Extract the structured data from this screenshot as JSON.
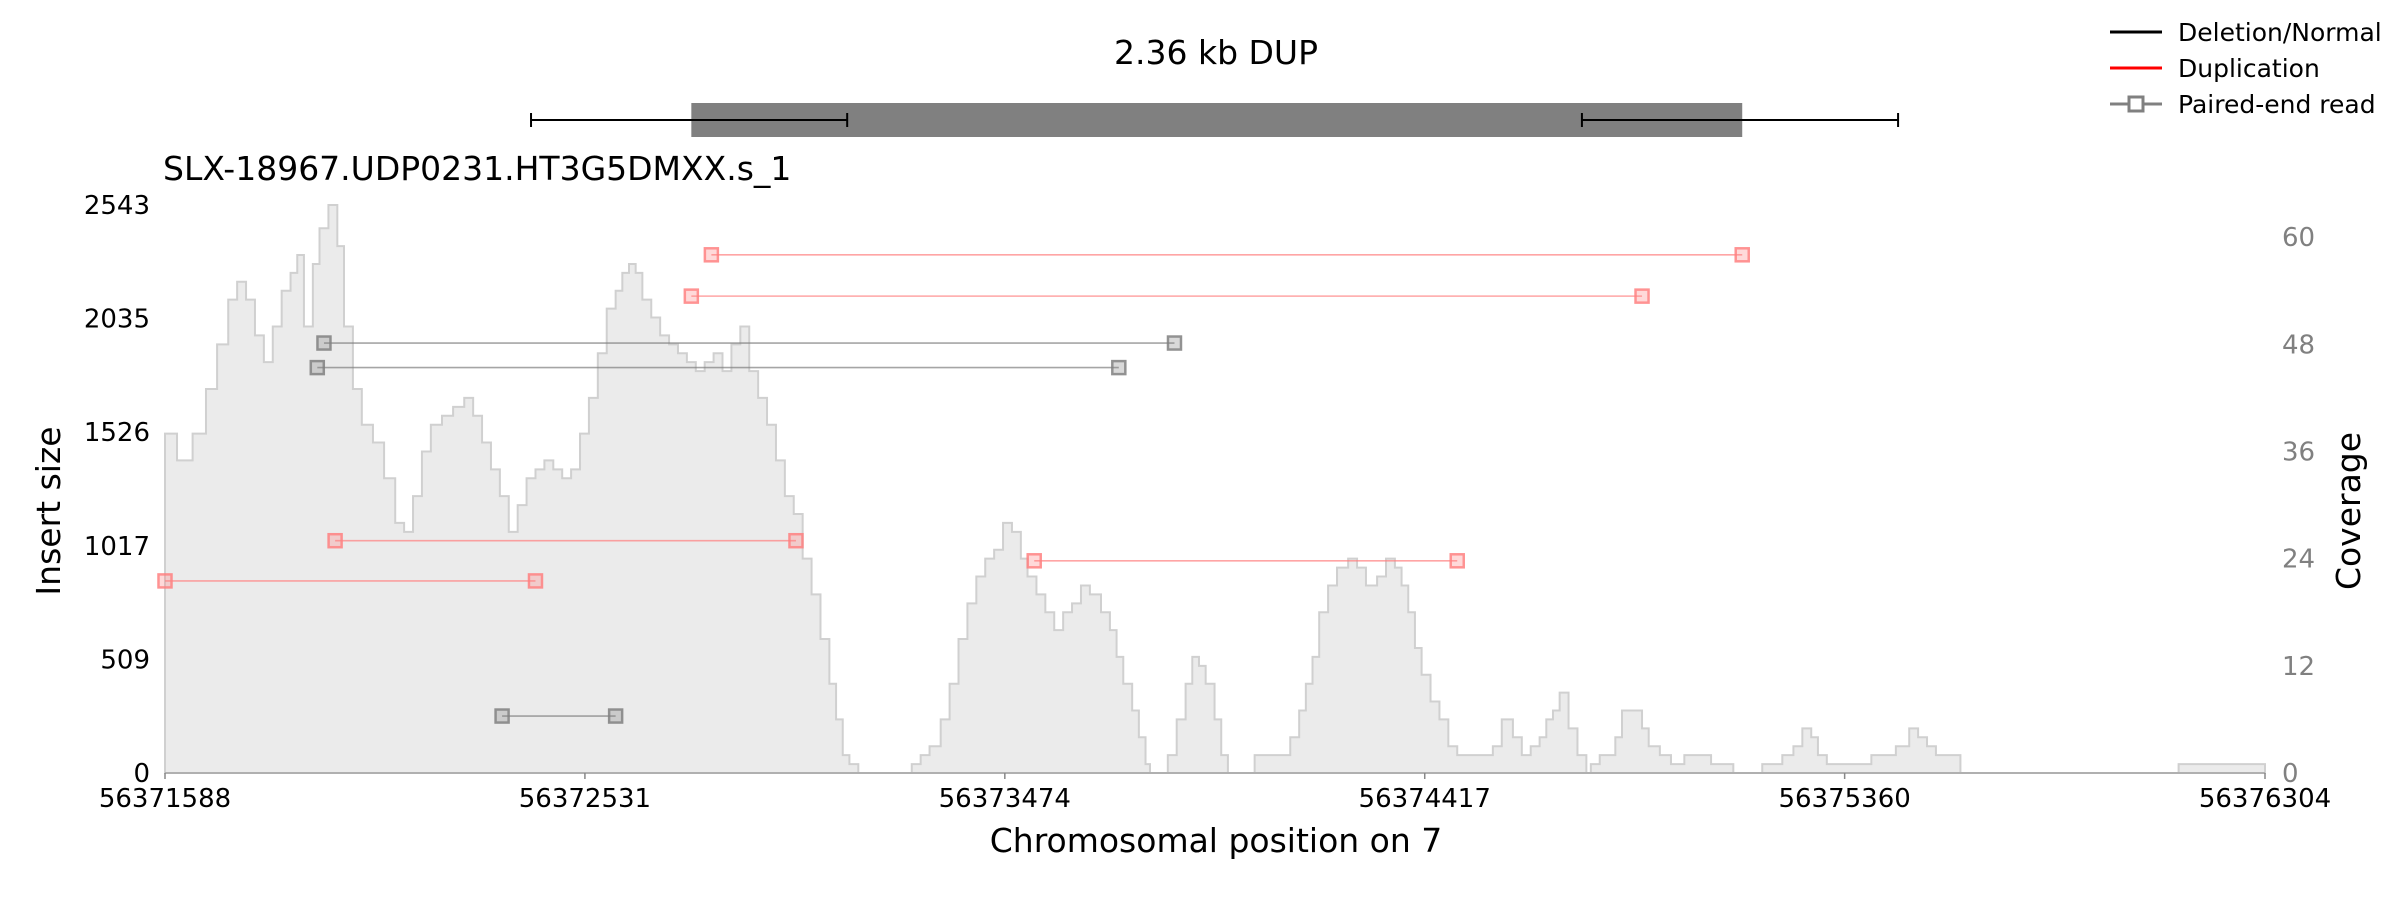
{
  "chart_data": {
    "type": "line",
    "title": "2.36 kb DUP",
    "subtitle": "SLX-18967.UDP0231.HT3G5DMXX.s_1",
    "xlabel": "Chromosomal position on 7",
    "ylabel_left": "Insert size",
    "ylabel_right": "Coverage",
    "xlim": [
      56371588,
      56376304
    ],
    "ylim_left": [
      0,
      2543
    ],
    "ylim_right": [
      0,
      63.6
    ],
    "x_ticks": [
      "56371588",
      "56372531",
      "56373474",
      "56374417",
      "56375360",
      "56376304"
    ],
    "y_ticks_left": [
      "0",
      "509",
      "1017",
      "1526",
      "2035",
      "2543"
    ],
    "y_ticks_right": [
      "0",
      "12",
      "24",
      "36",
      "48",
      "60"
    ],
    "legend": [
      {
        "label": "Deletion/Normal",
        "color": "#000000",
        "marker": "none"
      },
      {
        "label": "Duplication",
        "color": "#ff0000",
        "marker": "none"
      },
      {
        "label": "Paired-end read",
        "color": "#808080",
        "marker": "square"
      }
    ],
    "colors": {
      "normal": "#808080",
      "duplication": "#ff8080",
      "coverage_fill": "#ebebeb",
      "coverage_line": "#d0d0d0",
      "sv_bar": "#808080"
    },
    "sv": {
      "start": 56372770,
      "end": 56375130,
      "ci_start": [
        56372410,
        56373120
      ],
      "ci_end": [
        56374770,
        56375480
      ]
    },
    "pairs": [
      {
        "type": "duplication",
        "x1": 56372815,
        "x2": 56375130,
        "y": 2320
      },
      {
        "type": "duplication",
        "x1": 56372770,
        "x2": 56374905,
        "y": 2135
      },
      {
        "type": "normal",
        "x1": 56371945,
        "x2": 56373855,
        "y": 1925
      },
      {
        "type": "normal",
        "x1": 56371930,
        "x2": 56373730,
        "y": 1815
      },
      {
        "type": "duplication",
        "x1": 56371970,
        "x2": 56373005,
        "y": 1040
      },
      {
        "type": "duplication",
        "x1": 56373540,
        "x2": 56374490,
        "y": 950
      },
      {
        "type": "duplication",
        "x1": 56371588,
        "x2": 56372420,
        "y": 860
      },
      {
        "type": "normal",
        "x1": 56372345,
        "x2": 56372600,
        "y": 255
      }
    ],
    "coverage": [
      [
        56371588,
        38
      ],
      [
        56371615,
        35
      ],
      [
        56371650,
        38
      ],
      [
        56371680,
        43
      ],
      [
        56371705,
        48
      ],
      [
        56371730,
        53
      ],
      [
        56371750,
        55
      ],
      [
        56371770,
        53
      ],
      [
        56371790,
        49
      ],
      [
        56371810,
        46
      ],
      [
        56371830,
        50
      ],
      [
        56371850,
        54
      ],
      [
        56371870,
        56
      ],
      [
        56371885,
        58
      ],
      [
        56371900,
        50
      ],
      [
        56371920,
        57
      ],
      [
        56371935,
        61
      ],
      [
        56371955,
        63.6
      ],
      [
        56371975,
        59
      ],
      [
        56371990,
        50
      ],
      [
        56372010,
        43
      ],
      [
        56372030,
        39
      ],
      [
        56372055,
        37
      ],
      [
        56372080,
        33
      ],
      [
        56372105,
        28
      ],
      [
        56372125,
        27
      ],
      [
        56372145,
        31
      ],
      [
        56372165,
        36
      ],
      [
        56372185,
        39
      ],
      [
        56372210,
        40
      ],
      [
        56372235,
        41
      ],
      [
        56372260,
        42
      ],
      [
        56372280,
        40
      ],
      [
        56372300,
        37
      ],
      [
        56372320,
        34
      ],
      [
        56372340,
        31
      ],
      [
        56372360,
        27
      ],
      [
        56372380,
        30
      ],
      [
        56372400,
        33
      ],
      [
        56372420,
        34
      ],
      [
        56372440,
        35
      ],
      [
        56372460,
        34
      ],
      [
        56372480,
        33
      ],
      [
        56372500,
        34
      ],
      [
        56372520,
        38
      ],
      [
        56372540,
        42
      ],
      [
        56372560,
        47
      ],
      [
        56372580,
        52
      ],
      [
        56372600,
        54
      ],
      [
        56372615,
        56
      ],
      [
        56372630,
        57
      ],
      [
        56372645,
        56
      ],
      [
        56372660,
        53
      ],
      [
        56372680,
        51
      ],
      [
        56372700,
        49
      ],
      [
        56372720,
        48
      ],
      [
        56372740,
        47
      ],
      [
        56372760,
        46
      ],
      [
        56372780,
        45
      ],
      [
        56372800,
        46
      ],
      [
        56372820,
        47
      ],
      [
        56372840,
        45
      ],
      [
        56372860,
        48
      ],
      [
        56372880,
        50
      ],
      [
        56372900,
        45
      ],
      [
        56372920,
        42
      ],
      [
        56372940,
        39
      ],
      [
        56372960,
        35
      ],
      [
        56372980,
        31
      ],
      [
        56373000,
        29
      ],
      [
        56373020,
        24
      ],
      [
        56373040,
        20
      ],
      [
        56373060,
        15
      ],
      [
        56373080,
        10
      ],
      [
        56373095,
        6
      ],
      [
        56373110,
        2
      ],
      [
        56373125,
        1
      ],
      [
        56373145,
        0
      ],
      [
        56373265,
        1
      ],
      [
        56373285,
        2
      ],
      [
        56373305,
        3
      ],
      [
        56373330,
        6
      ],
      [
        56373350,
        10
      ],
      [
        56373370,
        15
      ],
      [
        56373390,
        19
      ],
      [
        56373410,
        22
      ],
      [
        56373430,
        24
      ],
      [
        56373450,
        25
      ],
      [
        56373470,
        28
      ],
      [
        56373490,
        27
      ],
      [
        56373510,
        24
      ],
      [
        56373525,
        22
      ],
      [
        56373545,
        20
      ],
      [
        56373565,
        18
      ],
      [
        56373585,
        16
      ],
      [
        56373605,
        18
      ],
      [
        56373625,
        19
      ],
      [
        56373645,
        21
      ],
      [
        56373665,
        20
      ],
      [
        56373690,
        18
      ],
      [
        56373710,
        16
      ],
      [
        56373725,
        13
      ],
      [
        56373740,
        10
      ],
      [
        56373760,
        7
      ],
      [
        56373775,
        4
      ],
      [
        56373790,
        1
      ],
      [
        56373800,
        0
      ],
      [
        56373840,
        2
      ],
      [
        56373860,
        6
      ],
      [
        56373880,
        10
      ],
      [
        56373895,
        13
      ],
      [
        56373910,
        12
      ],
      [
        56373925,
        10
      ],
      [
        56373945,
        6
      ],
      [
        56373960,
        2
      ],
      [
        56373975,
        0
      ],
      [
        56374035,
        2
      ],
      [
        56374085,
        2
      ],
      [
        56374115,
        4
      ],
      [
        56374135,
        7
      ],
      [
        56374150,
        10
      ],
      [
        56374165,
        13
      ],
      [
        56374180,
        18
      ],
      [
        56374200,
        21
      ],
      [
        56374220,
        23
      ],
      [
        56374245,
        24
      ],
      [
        56374265,
        23
      ],
      [
        56374285,
        21
      ],
      [
        56374310,
        22
      ],
      [
        56374330,
        24
      ],
      [
        56374350,
        23
      ],
      [
        56374365,
        21
      ],
      [
        56374380,
        18
      ],
      [
        56374395,
        14
      ],
      [
        56374410,
        11
      ],
      [
        56374430,
        8
      ],
      [
        56374450,
        6
      ],
      [
        56374470,
        3
      ],
      [
        56374490,
        2
      ],
      [
        56374570,
        3
      ],
      [
        56374590,
        6
      ],
      [
        56374615,
        4
      ],
      [
        56374635,
        2
      ],
      [
        56374655,
        3
      ],
      [
        56374675,
        4
      ],
      [
        56374690,
        6
      ],
      [
        56374705,
        7
      ],
      [
        56374720,
        9
      ],
      [
        56374740,
        5
      ],
      [
        56374760,
        2
      ],
      [
        56374780,
        0
      ],
      [
        56374790,
        1
      ],
      [
        56374810,
        2
      ],
      [
        56374845,
        4
      ],
      [
        56374860,
        7
      ],
      [
        56374890,
        7
      ],
      [
        56374905,
        5
      ],
      [
        56374920,
        3
      ],
      [
        56374945,
        2
      ],
      [
        56374970,
        1
      ],
      [
        56375000,
        2
      ],
      [
        56375060,
        1
      ],
      [
        56375110,
        0
      ],
      [
        56375175,
        1
      ],
      [
        56375220,
        2
      ],
      [
        56375245,
        3
      ],
      [
        56375265,
        5
      ],
      [
        56375285,
        4
      ],
      [
        56375300,
        2
      ],
      [
        56375320,
        1
      ],
      [
        56375370,
        1
      ],
      [
        56375420,
        2
      ],
      [
        56375445,
        2
      ],
      [
        56375475,
        3
      ],
      [
        56375505,
        5
      ],
      [
        56375525,
        4
      ],
      [
        56375545,
        3
      ],
      [
        56375565,
        2
      ],
      [
        56375580,
        2
      ],
      [
        56375620,
        0
      ],
      [
        56376110,
        1
      ],
      [
        56376304,
        1
      ]
    ]
  }
}
